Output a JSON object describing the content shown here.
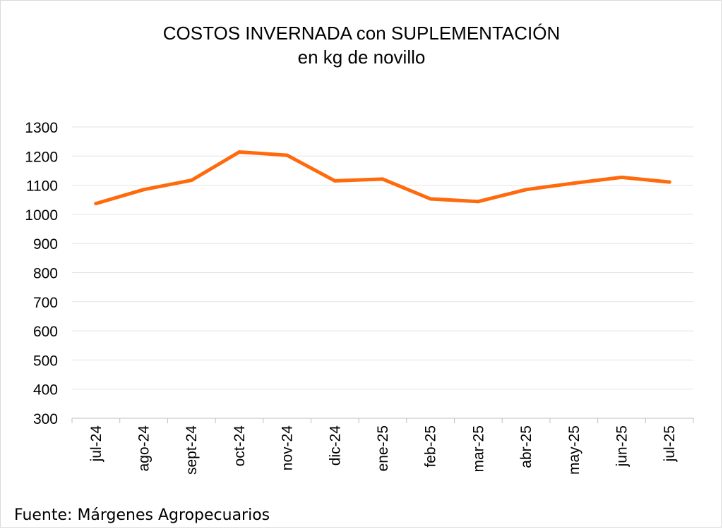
{
  "chart_data": {
    "type": "line",
    "title": "COSTOS INVERNADA con SUPLEMENTACIÓN",
    "subtitle": "en kg de novillo",
    "xlabel": "",
    "ylabel": "",
    "categories": [
      "jul-24",
      "ago-24",
      "sept-24",
      "oct-24",
      "nov-24",
      "dic-24",
      "ene-25",
      "feb-25",
      "mar-25",
      "abr-25",
      "may-25",
      "jun-25",
      "jul-25"
    ],
    "series": [
      {
        "values": [
          1037,
          1085,
          1117,
          1214,
          1203,
          1115,
          1121,
          1053,
          1044,
          1085,
          1107,
          1127,
          1111
        ]
      }
    ],
    "ylim": [
      300,
      1300
    ],
    "yticks": [
      "1300",
      "1200",
      "1100",
      "1000",
      "900",
      "800",
      "700",
      "600",
      "500",
      "400",
      "300"
    ],
    "grid": true,
    "legend": "none"
  },
  "colors": {
    "line": "#FF6A0D",
    "grid": "#e3e3e3",
    "axis": "#bfbfbf"
  },
  "source": "Fuente: Márgenes Agropecuarios"
}
